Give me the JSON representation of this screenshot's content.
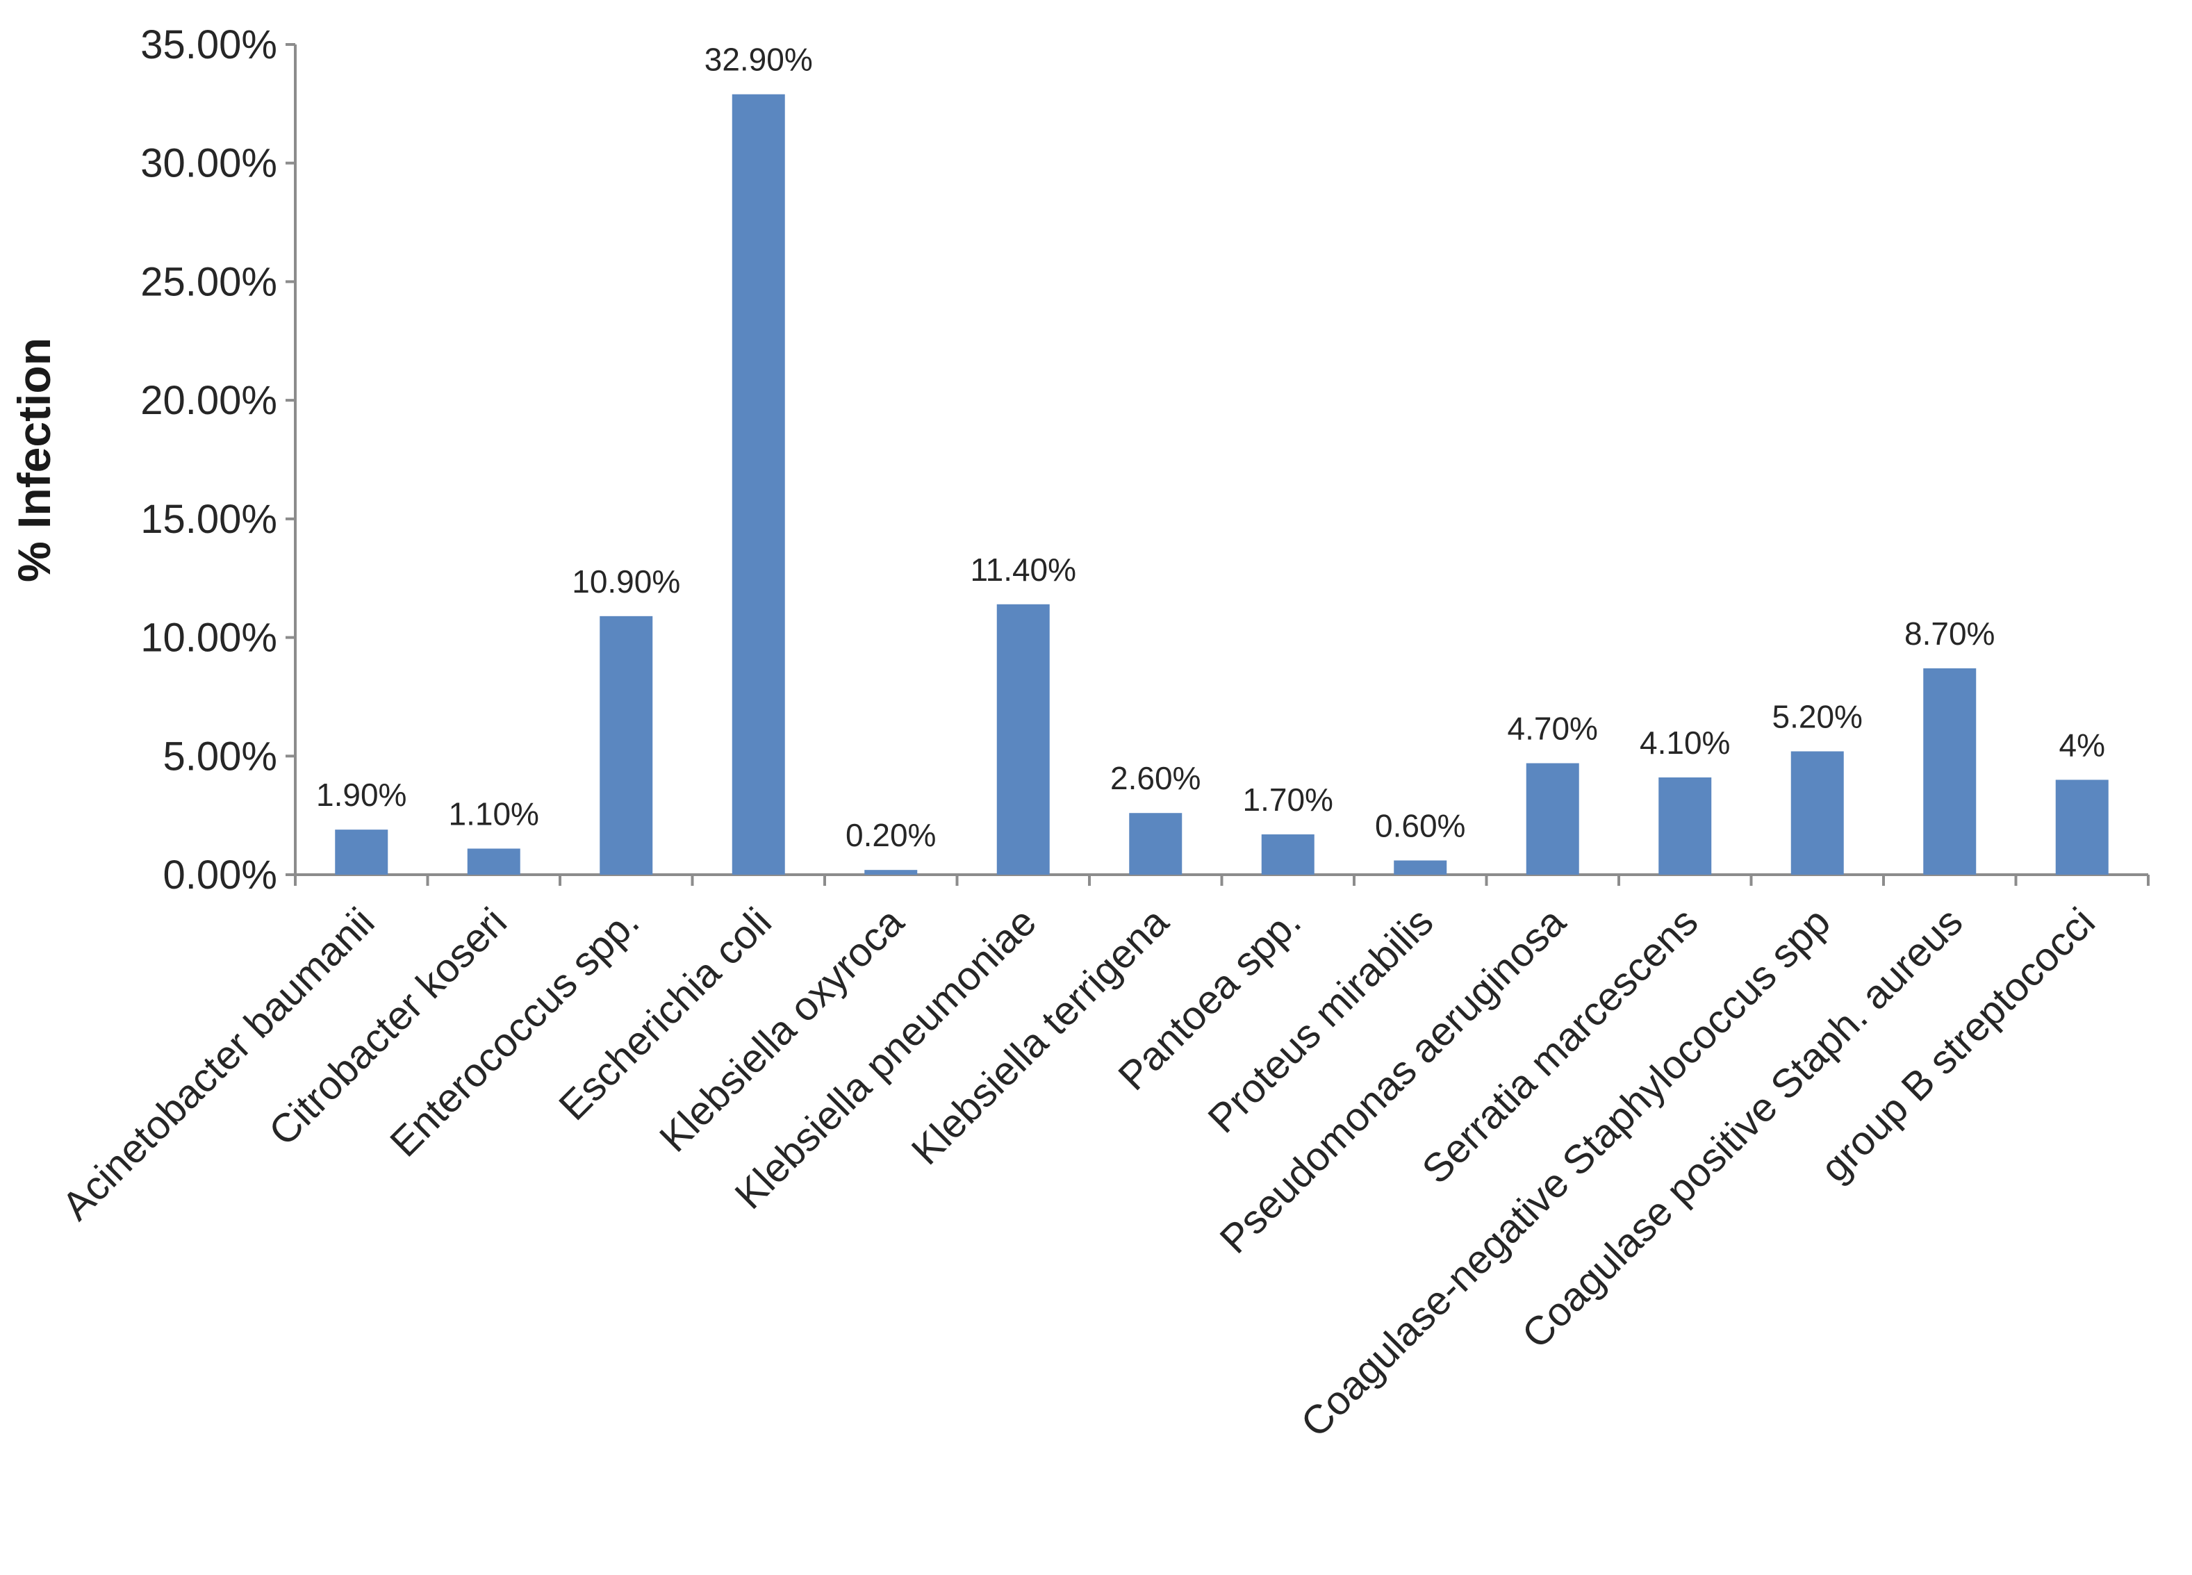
{
  "chart_data": {
    "type": "bar",
    "ylabel": "% Infection",
    "xlabel": "",
    "ylim": [
      0,
      35
    ],
    "y_ticks": [
      "0.00%",
      "5.00%",
      "10.00%",
      "15.00%",
      "20.00%",
      "25.00%",
      "30.00%",
      "35.00%"
    ],
    "y_tick_values": [
      0,
      5,
      10,
      15,
      20,
      25,
      30,
      35
    ],
    "grid": false,
    "legend": "none",
    "bar_color": "#5b87c0",
    "categories": [
      "Acinetobacter baumanii",
      "Citrobacter koseri",
      "Enterococcus spp.",
      "Escherichia coli",
      "Klebsiella oxyroca",
      "Klebsiella pneumoniae",
      "Klebsiella terrigena",
      "Pantoea spp.",
      "Proteus mirabilis",
      "Pseudomonas aeruginosa",
      "Serratia marcescens",
      "Coagulase-negative Staphylococcus spp",
      "Coagulase positive Staph. aureus",
      "group B streptococci"
    ],
    "values": [
      1.9,
      1.1,
      10.9,
      32.9,
      0.2,
      11.4,
      2.6,
      1.7,
      0.6,
      4.7,
      4.1,
      5.2,
      8.7,
      4.0
    ],
    "data_labels": [
      "1.90%",
      "1.10%",
      "10.90%",
      "32.90%",
      "0.20%",
      "11.40%",
      "2.60%",
      "1.70%",
      "0.60%",
      "4.70%",
      "4.10%",
      "5.20%",
      "8.70%",
      "4%"
    ]
  }
}
